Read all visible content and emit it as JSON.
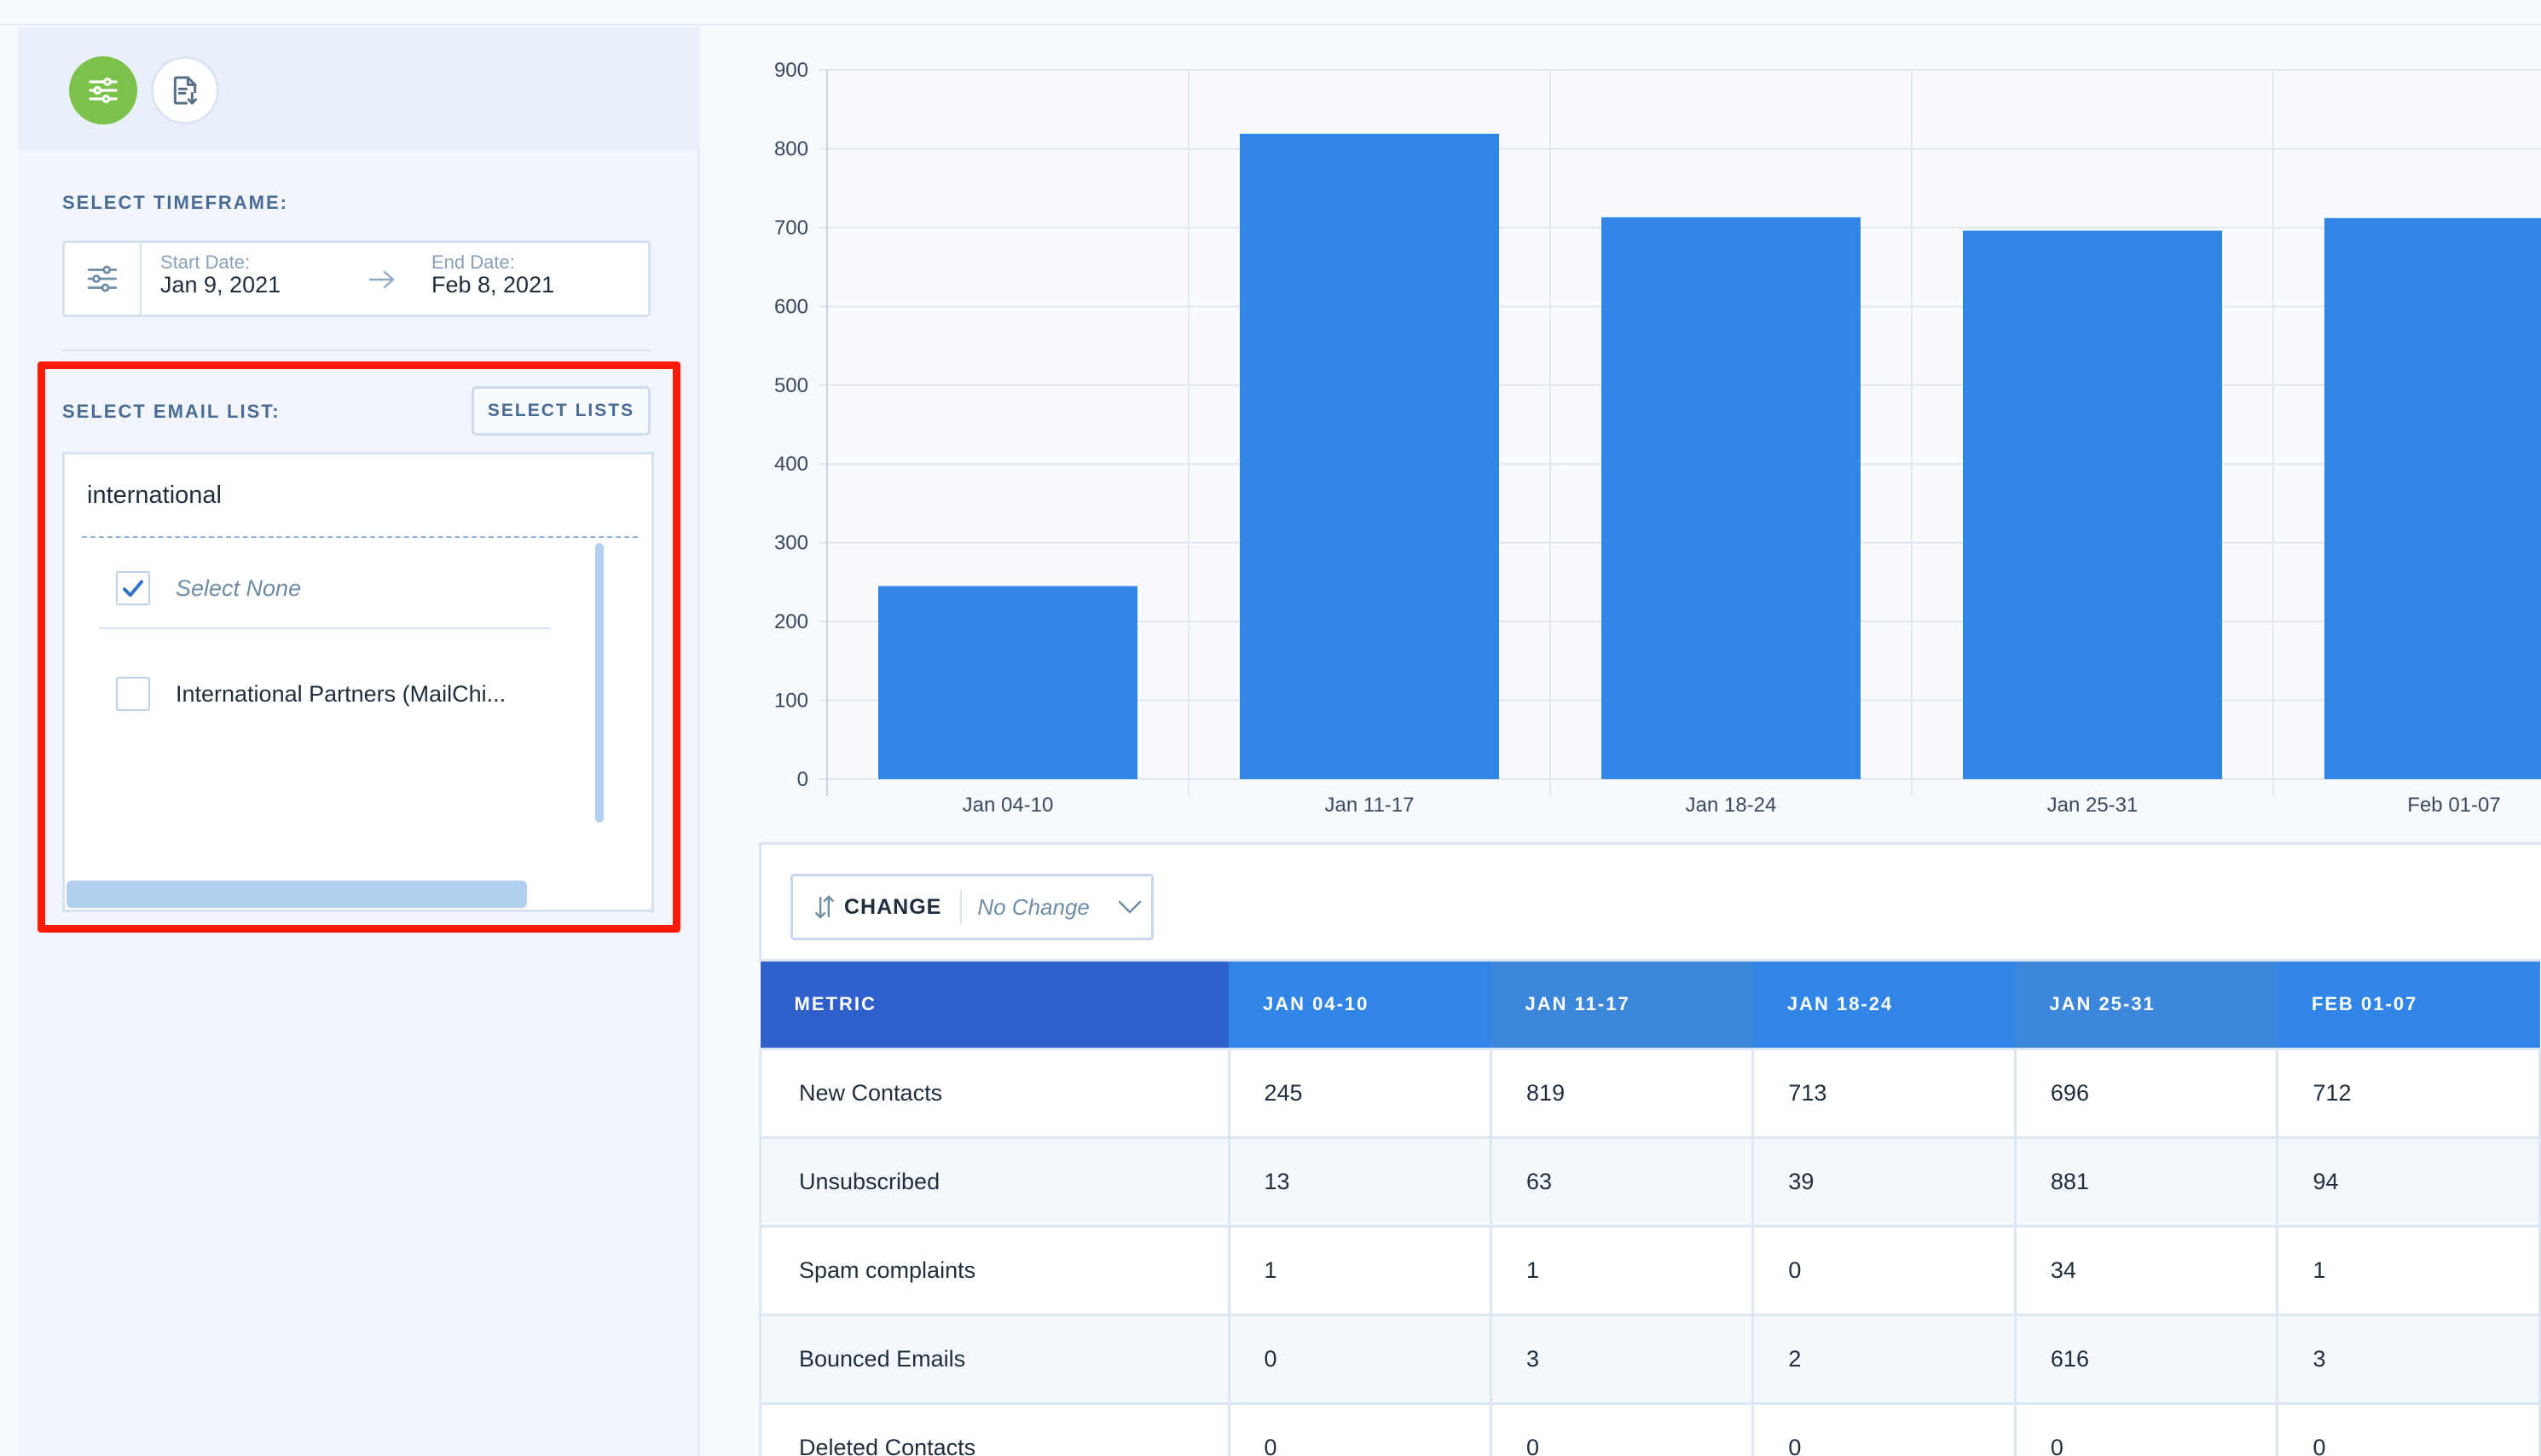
{
  "sidebar": {
    "timeframe_label": "SELECT TIMEFRAME:",
    "start_caption": "Start Date:",
    "start_value": "Jan 9, 2021",
    "end_caption": "End Date:",
    "end_value": "Feb 8, 2021",
    "email_list_label": "SELECT EMAIL LIST:",
    "select_lists_button": "SELECT LISTS",
    "search_value": "international",
    "options": [
      {
        "label": "Select None",
        "checked": true
      },
      {
        "label": "International Partners (MailChi...",
        "checked": false
      }
    ]
  },
  "chart_data": {
    "type": "bar",
    "categories": [
      "Jan 04-10",
      "Jan 11-17",
      "Jan 18-24",
      "Jan 25-31",
      "Feb 01-07"
    ],
    "values": [
      245,
      819,
      713,
      696,
      712
    ],
    "ylim": [
      0,
      900
    ],
    "yticks": [
      0,
      100,
      200,
      300,
      400,
      500,
      600,
      700,
      800,
      900
    ],
    "grid": true,
    "color": "#3185e6"
  },
  "change": {
    "label": "CHANGE",
    "value": "No Change"
  },
  "table": {
    "headers": [
      "METRIC",
      "JAN 04-10",
      "JAN 11-17",
      "JAN 18-24",
      "JAN 25-31",
      "FEB 01-07"
    ],
    "rows": [
      [
        "New Contacts",
        "245",
        "819",
        "713",
        "696",
        "712"
      ],
      [
        "Unsubscribed",
        "13",
        "63",
        "39",
        "881",
        "94"
      ],
      [
        "Spam complaints",
        "1",
        "1",
        "0",
        "34",
        "1"
      ],
      [
        "Bounced Emails",
        "0",
        "3",
        "2",
        "616",
        "3"
      ],
      [
        "Deleted Contacts",
        "0",
        "0",
        "0",
        "0",
        "0"
      ]
    ]
  }
}
